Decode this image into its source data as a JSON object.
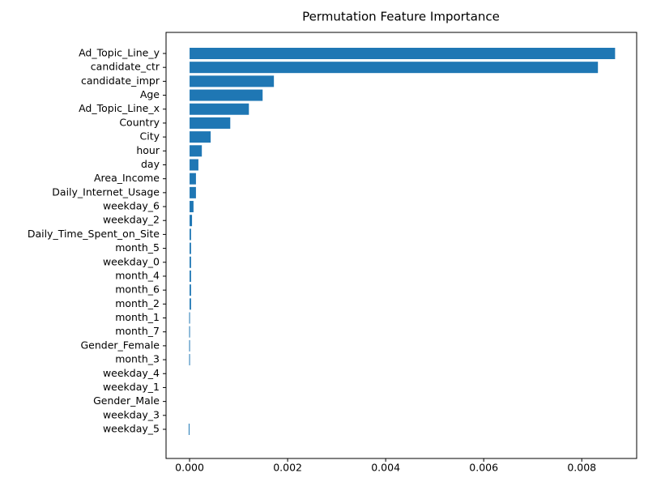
{
  "chart_data": {
    "type": "barh",
    "title": "Permutation Feature Importance",
    "categories": [
      "Ad_Topic_Line_y",
      "candidate_ctr",
      "candidate_impr",
      "Age",
      "Ad_Topic_Line_x",
      "Country",
      "City",
      "hour",
      "day",
      "Area_Income",
      "Daily_Internet_Usage",
      "weekday_6",
      "weekday_2",
      "Daily_Time_Spent_on_Site",
      "month_5",
      "weekday_0",
      "month_4",
      "month_6",
      "month_2",
      "month_1",
      "month_7",
      "Gender_Female",
      "month_3",
      "weekday_4",
      "weekday_1",
      "Gender_Male",
      "weekday_3",
      "weekday_5"
    ],
    "values": [
      0.00868,
      0.00833,
      0.00172,
      0.00149,
      0.00121,
      0.00083,
      0.00043,
      0.00025,
      0.00018,
      0.00013,
      0.00013,
      8e-05,
      5e-05,
      3e-05,
      3e-05,
      3e-05,
      3e-05,
      3e-05,
      3e-05,
      1e-05,
      1e-05,
      1e-05,
      1e-05,
      0,
      0,
      0,
      0,
      -1e-05
    ],
    "color": "#1f77b4",
    "xlim": [
      -0.00048,
      0.00912
    ],
    "xticks": [
      {
        "value": 0,
        "label": "0.000"
      },
      {
        "value": 0.002,
        "label": "0.002"
      },
      {
        "value": 0.004,
        "label": "0.004"
      },
      {
        "value": 0.006,
        "label": "0.006"
      },
      {
        "value": 0.008,
        "label": "0.008"
      }
    ]
  }
}
